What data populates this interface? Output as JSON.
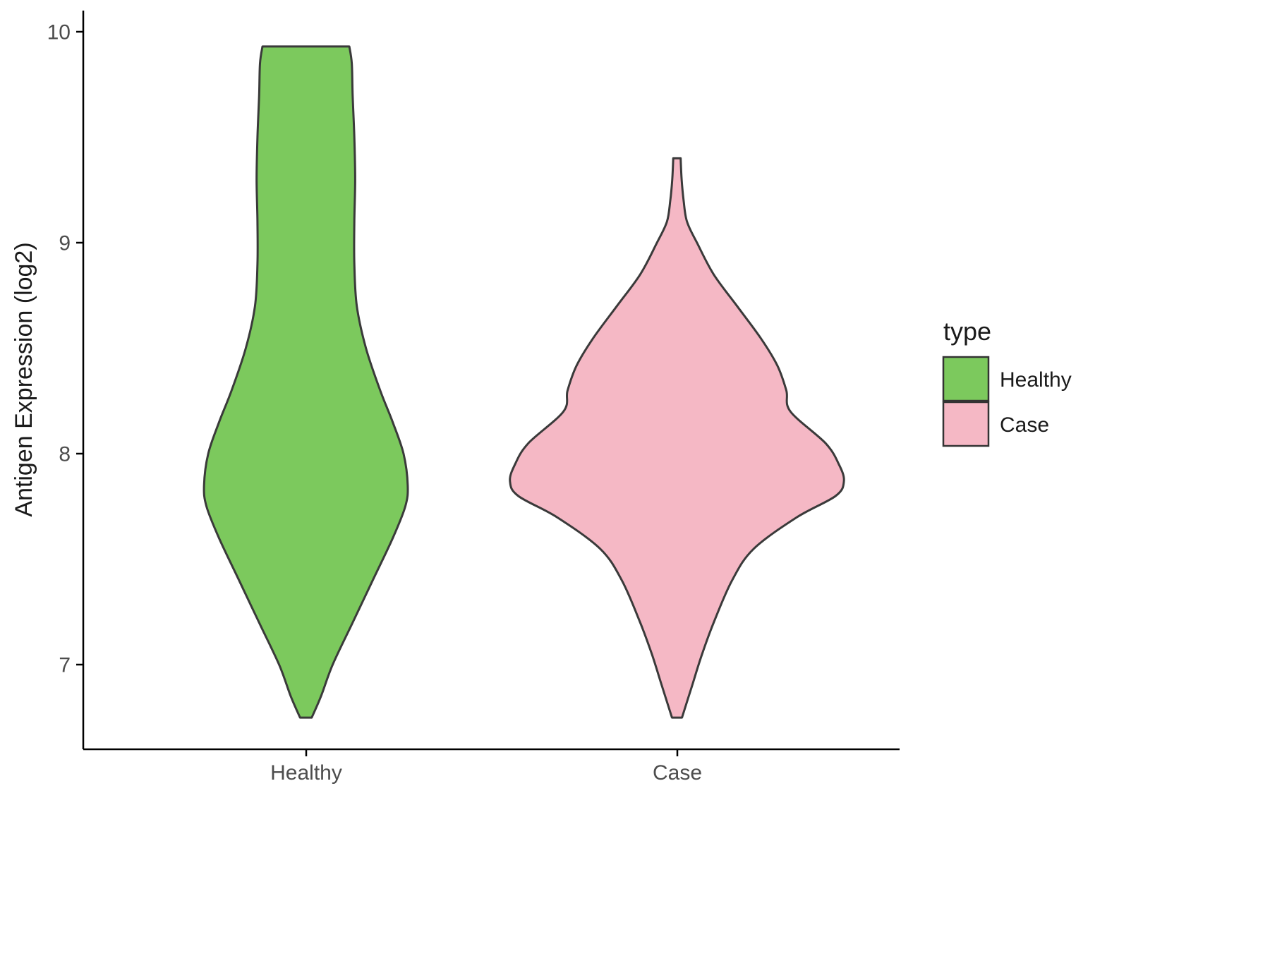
{
  "chart_data": {
    "type": "violin",
    "title": "",
    "xlabel": "",
    "ylabel": "Antigen Expression (log2)",
    "categories": [
      "Healthy",
      "Case"
    ],
    "y_tick_labels": [
      "10",
      "9",
      "8",
      "7"
    ],
    "y_tick_values": [
      10,
      9,
      8,
      7
    ],
    "ylim": [
      6.6,
      10.1
    ],
    "grid": false,
    "legend": {
      "title": "type",
      "position": "right",
      "entries": [
        {
          "label": "Healthy",
          "color": "#7CC95D"
        },
        {
          "label": "Case",
          "color": "#F5B8C5"
        }
      ]
    },
    "colors": {
      "healthy_fill": "#7CC95D",
      "case_fill": "#F5B8C5",
      "outline": "#3A3A3A",
      "axis": "#000000",
      "tick_text": "#4d4d4d"
    },
    "series": [
      {
        "name": "Healthy",
        "color": "#7CC95D",
        "y_range": [
          6.75,
          9.93
        ],
        "profile": [
          [
            6.75,
            0.035
          ],
          [
            6.85,
            0.09
          ],
          [
            7.0,
            0.16
          ],
          [
            7.2,
            0.28
          ],
          [
            7.4,
            0.4
          ],
          [
            7.6,
            0.52
          ],
          [
            7.75,
            0.595
          ],
          [
            7.85,
            0.61
          ],
          [
            8.0,
            0.585
          ],
          [
            8.15,
            0.52
          ],
          [
            8.3,
            0.445
          ],
          [
            8.5,
            0.36
          ],
          [
            8.7,
            0.305
          ],
          [
            8.9,
            0.29
          ],
          [
            9.1,
            0.29
          ],
          [
            9.3,
            0.295
          ],
          [
            9.5,
            0.29
          ],
          [
            9.7,
            0.28
          ],
          [
            9.85,
            0.275
          ],
          [
            9.93,
            0.26
          ]
        ]
      },
      {
        "name": "Case",
        "color": "#F5B8C5",
        "y_range": [
          6.75,
          9.4
        ],
        "profile": [
          [
            6.75,
            0.03
          ],
          [
            6.9,
            0.09
          ],
          [
            7.05,
            0.15
          ],
          [
            7.2,
            0.22
          ],
          [
            7.4,
            0.33
          ],
          [
            7.55,
            0.46
          ],
          [
            7.7,
            0.72
          ],
          [
            7.8,
            0.95
          ],
          [
            7.87,
            1.0
          ],
          [
            7.95,
            0.97
          ],
          [
            8.05,
            0.89
          ],
          [
            8.2,
            0.68
          ],
          [
            8.3,
            0.655
          ],
          [
            8.42,
            0.6
          ],
          [
            8.55,
            0.5
          ],
          [
            8.7,
            0.36
          ],
          [
            8.85,
            0.22
          ],
          [
            9.0,
            0.12
          ],
          [
            9.1,
            0.06
          ],
          [
            9.2,
            0.04
          ],
          [
            9.3,
            0.028
          ],
          [
            9.4,
            0.022
          ]
        ]
      }
    ]
  }
}
